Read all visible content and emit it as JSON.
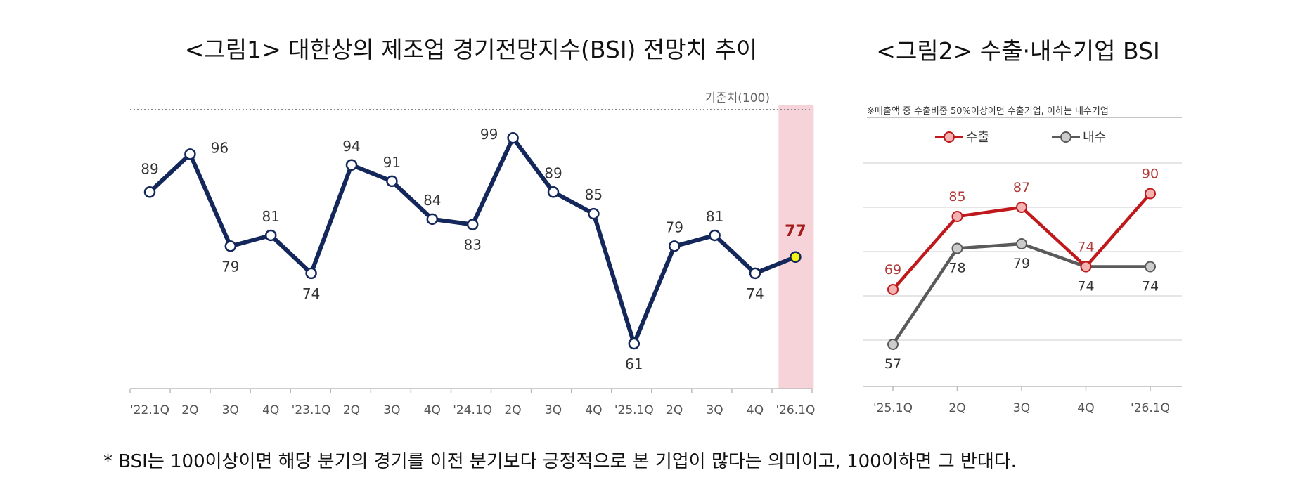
{
  "chart_data": [
    {
      "type": "line",
      "title": "<그림1> 대한상의 제조업 경기전망지수(BSI) 전망치 추이",
      "categories": [
        "'22.1Q",
        "2Q",
        "3Q",
        "4Q",
        "'23.1Q",
        "2Q",
        "3Q",
        "4Q",
        "'24.1Q",
        "2Q",
        "3Q",
        "4Q",
        "'25.1Q",
        "2Q",
        "3Q",
        "4Q",
        "'26.1Q"
      ],
      "series": [
        {
          "values": [
            89,
            96,
            79,
            81,
            74,
            94,
            91,
            84,
            83,
            99,
            89,
            85,
            61,
            79,
            81,
            74,
            77
          ]
        }
      ],
      "reference_line": {
        "value": 100,
        "label": "기준치(100)"
      },
      "highlight_category": "'26.1Q",
      "ylim": [
        54,
        105
      ],
      "colors": {
        "line": "#13275a",
        "highlight": "#f6d3d9",
        "last_marker": "#f3f316"
      }
    },
    {
      "type": "line",
      "title": "<그림2> 수출·내수기업 BSI",
      "note": "※매출액 중 수출비중 50%이상이면 수출기업, 이하는 내수기업",
      "categories": [
        "'25.1Q",
        "2Q",
        "3Q",
        "4Q",
        "'26.1Q"
      ],
      "series": [
        {
          "name": "수출",
          "values": [
            69,
            85,
            87,
            74,
            90
          ]
        },
        {
          "name": "내수",
          "values": [
            57,
            78,
            79,
            74,
            74
          ]
        }
      ],
      "legend_position": "top",
      "ylim": [
        47,
        97
      ],
      "grid": true,
      "colors": {
        "수출": "#c0191c",
        "내수": "#5a5a5a"
      }
    }
  ],
  "footnote": "* BSI는 100이상이면 해당 분기의 경기를 이전 분기보다 긍정적으로 본 기업이 많다는 의미이고, 100이하면 그 반대다."
}
